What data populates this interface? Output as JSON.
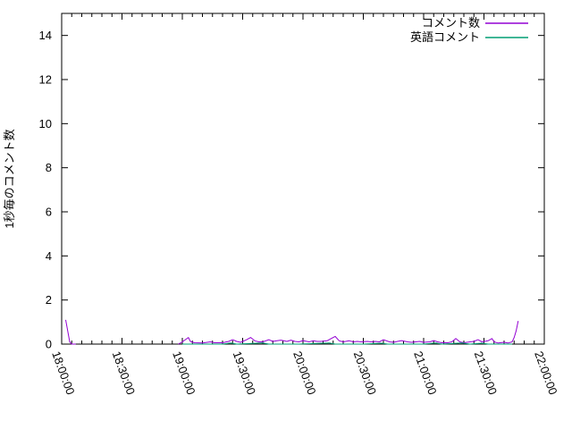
{
  "chart_data": {
    "type": "line",
    "title": "",
    "xlabel": "",
    "ylabel": "1秒毎のコメント数",
    "x_axis": {
      "start_time": "18:00:00",
      "end_time": "22:00:00",
      "total_minutes": 240,
      "major_tick_minutes": 30,
      "minor_tick_minutes": 5,
      "tick_labels": [
        "18:00:00",
        "18:30:00",
        "19:00:00",
        "19:30:00",
        "20:00:00",
        "20:30:00",
        "21:00:00",
        "21:30:00",
        "22:00:00"
      ],
      "tick_label_rotation_deg": 70
    },
    "y_axis": {
      "min": 0,
      "max": 15,
      "major_tick_step": 2,
      "tick_labels": [
        "0",
        "2",
        "4",
        "6",
        "8",
        "10",
        "12",
        "14"
      ]
    },
    "legend": {
      "position": "top-right-inside",
      "entries": [
        {
          "label": "コメント数",
          "color": "#9400d3"
        },
        {
          "label": "英語コメント",
          "color": "#009e73"
        }
      ]
    },
    "grid": false,
    "background_color": "#ffffff",
    "axis_color": "#000000",
    "series": [
      {
        "name": "コメント数",
        "color": "#9400d3",
        "points_format": "[minutes_after_18:00, comments_per_second]",
        "segments": [
          [
            [
              2,
              1.1
            ],
            [
              4,
              0.1
            ],
            [
              5,
              0
            ],
            [
              7,
              0
            ]
          ],
          [
            [
              58,
              0
            ],
            [
              60,
              0.1
            ],
            [
              63,
              0.3
            ],
            [
              64,
              0.12
            ],
            [
              66,
              0.06
            ],
            [
              70,
              0.05
            ],
            [
              74,
              0.1
            ],
            [
              76,
              0.06
            ],
            [
              80,
              0.06
            ],
            [
              83,
              0.12
            ],
            [
              85,
              0.2
            ],
            [
              87,
              0.12
            ],
            [
              89,
              0.08
            ],
            [
              92,
              0.2
            ],
            [
              94,
              0.3
            ],
            [
              96,
              0.15
            ],
            [
              98,
              0.1
            ],
            [
              100,
              0.1
            ],
            [
              103,
              0.2
            ],
            [
              105,
              0.12
            ],
            [
              107,
              0.15
            ],
            [
              109,
              0.18
            ],
            [
              112,
              0.12
            ],
            [
              114,
              0.18
            ],
            [
              116,
              0.12
            ],
            [
              118,
              0.1
            ],
            [
              120,
              0.16
            ],
            [
              123,
              0.1
            ],
            [
              125,
              0.15
            ],
            [
              127,
              0.12
            ],
            [
              129,
              0.12
            ],
            [
              132,
              0.15
            ],
            [
              134,
              0.25
            ],
            [
              136,
              0.35
            ],
            [
              138,
              0.15
            ],
            [
              140,
              0.1
            ],
            [
              143,
              0.15
            ],
            [
              145,
              0.1
            ],
            [
              147,
              0.12
            ],
            [
              149,
              0.1
            ],
            [
              152,
              0.12
            ],
            [
              154,
              0.1
            ],
            [
              156,
              0.12
            ],
            [
              158,
              0.1
            ],
            [
              160,
              0.2
            ],
            [
              163,
              0.1
            ],
            [
              165,
              0.08
            ],
            [
              167,
              0.12
            ],
            [
              169,
              0.16
            ],
            [
              172,
              0.1
            ],
            [
              174,
              0.08
            ],
            [
              176,
              0.1
            ],
            [
              178,
              0.12
            ],
            [
              180,
              0.08
            ],
            [
              183,
              0.1
            ],
            [
              185,
              0.16
            ],
            [
              187,
              0.1
            ],
            [
              189,
              0.06
            ],
            [
              192,
              0.06
            ],
            [
              194,
              0.1
            ],
            [
              196,
              0.25
            ],
            [
              198,
              0.1
            ],
            [
              200,
              0.06
            ],
            [
              203,
              0.1
            ],
            [
              205,
              0.12
            ],
            [
              207,
              0.2
            ],
            [
              209,
              0.1
            ],
            [
              212,
              0.15
            ],
            [
              214,
              0.25
            ],
            [
              215,
              0.1
            ],
            [
              217,
              0.05
            ],
            [
              220,
              0.08
            ],
            [
              222,
              0.05
            ],
            [
              224,
              0.1
            ],
            [
              225,
              0.3
            ],
            [
              226,
              0.6
            ],
            [
              227,
              1.05
            ]
          ]
        ]
      },
      {
        "name": "英語コメント",
        "color": "#009e73",
        "points_format": "[minutes_after_18:00, comments_per_second]",
        "segments": [
          [
            [
              60,
              0
            ],
            [
              80,
              0
            ],
            [
              84,
              0.05
            ],
            [
              87,
              0
            ],
            [
              100,
              0.05
            ],
            [
              103,
              0
            ],
            [
              118,
              0
            ],
            [
              133,
              0.05
            ],
            [
              136,
              0
            ],
            [
              150,
              0
            ],
            [
              159,
              0.04
            ],
            [
              162,
              0
            ],
            [
              180,
              0
            ],
            [
              186,
              0.05
            ],
            [
              189,
              0
            ],
            [
              199,
              0.05
            ],
            [
              203,
              0
            ],
            [
              209,
              0.04
            ],
            [
              212,
              0
            ],
            [
              224,
              0
            ]
          ]
        ]
      }
    ]
  }
}
